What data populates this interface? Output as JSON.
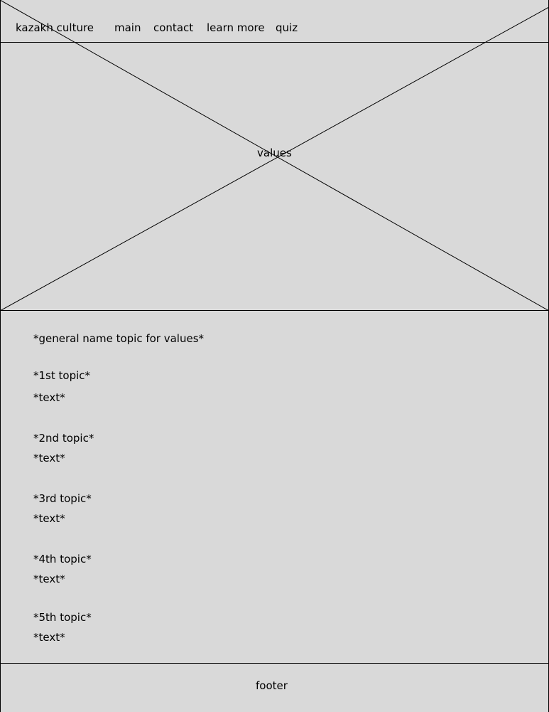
{
  "header": {
    "brand": "kazakh culture",
    "nav": [
      "main",
      "contact",
      "learn more",
      "quiz"
    ]
  },
  "hero": {
    "label": "values"
  },
  "content": {
    "heading": "*general name topic for values*",
    "topics": [
      {
        "title": "*1st topic*",
        "text": "*text*"
      },
      {
        "title": "*2nd topic*",
        "text": "*text*"
      },
      {
        "title": "*3rd topic*",
        "text": "*text*"
      },
      {
        "title": "*4th topic*",
        "text": "*text*"
      },
      {
        "title": "*5th topic*",
        "text": "*text*"
      }
    ]
  },
  "footer": {
    "label": "footer"
  }
}
